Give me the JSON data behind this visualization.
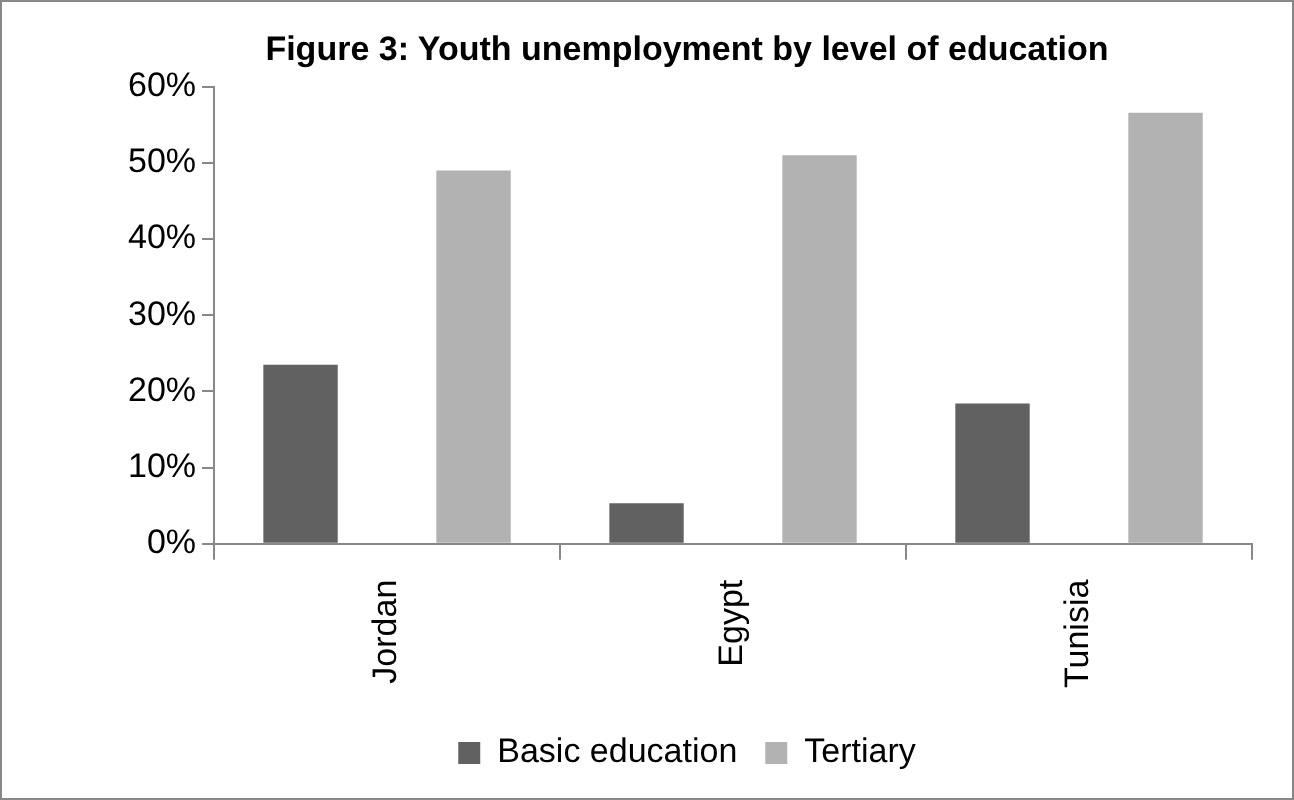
{
  "chart_data": {
    "type": "bar",
    "title": "Figure 3: Youth unemployment by level of education",
    "categories": [
      "Jordan",
      "Egypt",
      "Tunisia"
    ],
    "series": [
      {
        "name": "Basic education",
        "color": "#616161",
        "values": [
          23.5,
          5.3,
          18.4
        ]
      },
      {
        "name": "Tertiary",
        "color": "#b2b2b2",
        "values": [
          49,
          51,
          56.6
        ]
      }
    ],
    "ylim": [
      0,
      60
    ],
    "yticks": [
      {
        "value": 0,
        "label": "0%"
      },
      {
        "value": 10,
        "label": "10%"
      },
      {
        "value": 20,
        "label": "20%"
      },
      {
        "value": 30,
        "label": "30%"
      },
      {
        "value": 40,
        "label": "40%"
      },
      {
        "value": 50,
        "label": "50%"
      },
      {
        "value": 60,
        "label": "60%"
      }
    ],
    "grid": false,
    "legend": "bottom"
  }
}
